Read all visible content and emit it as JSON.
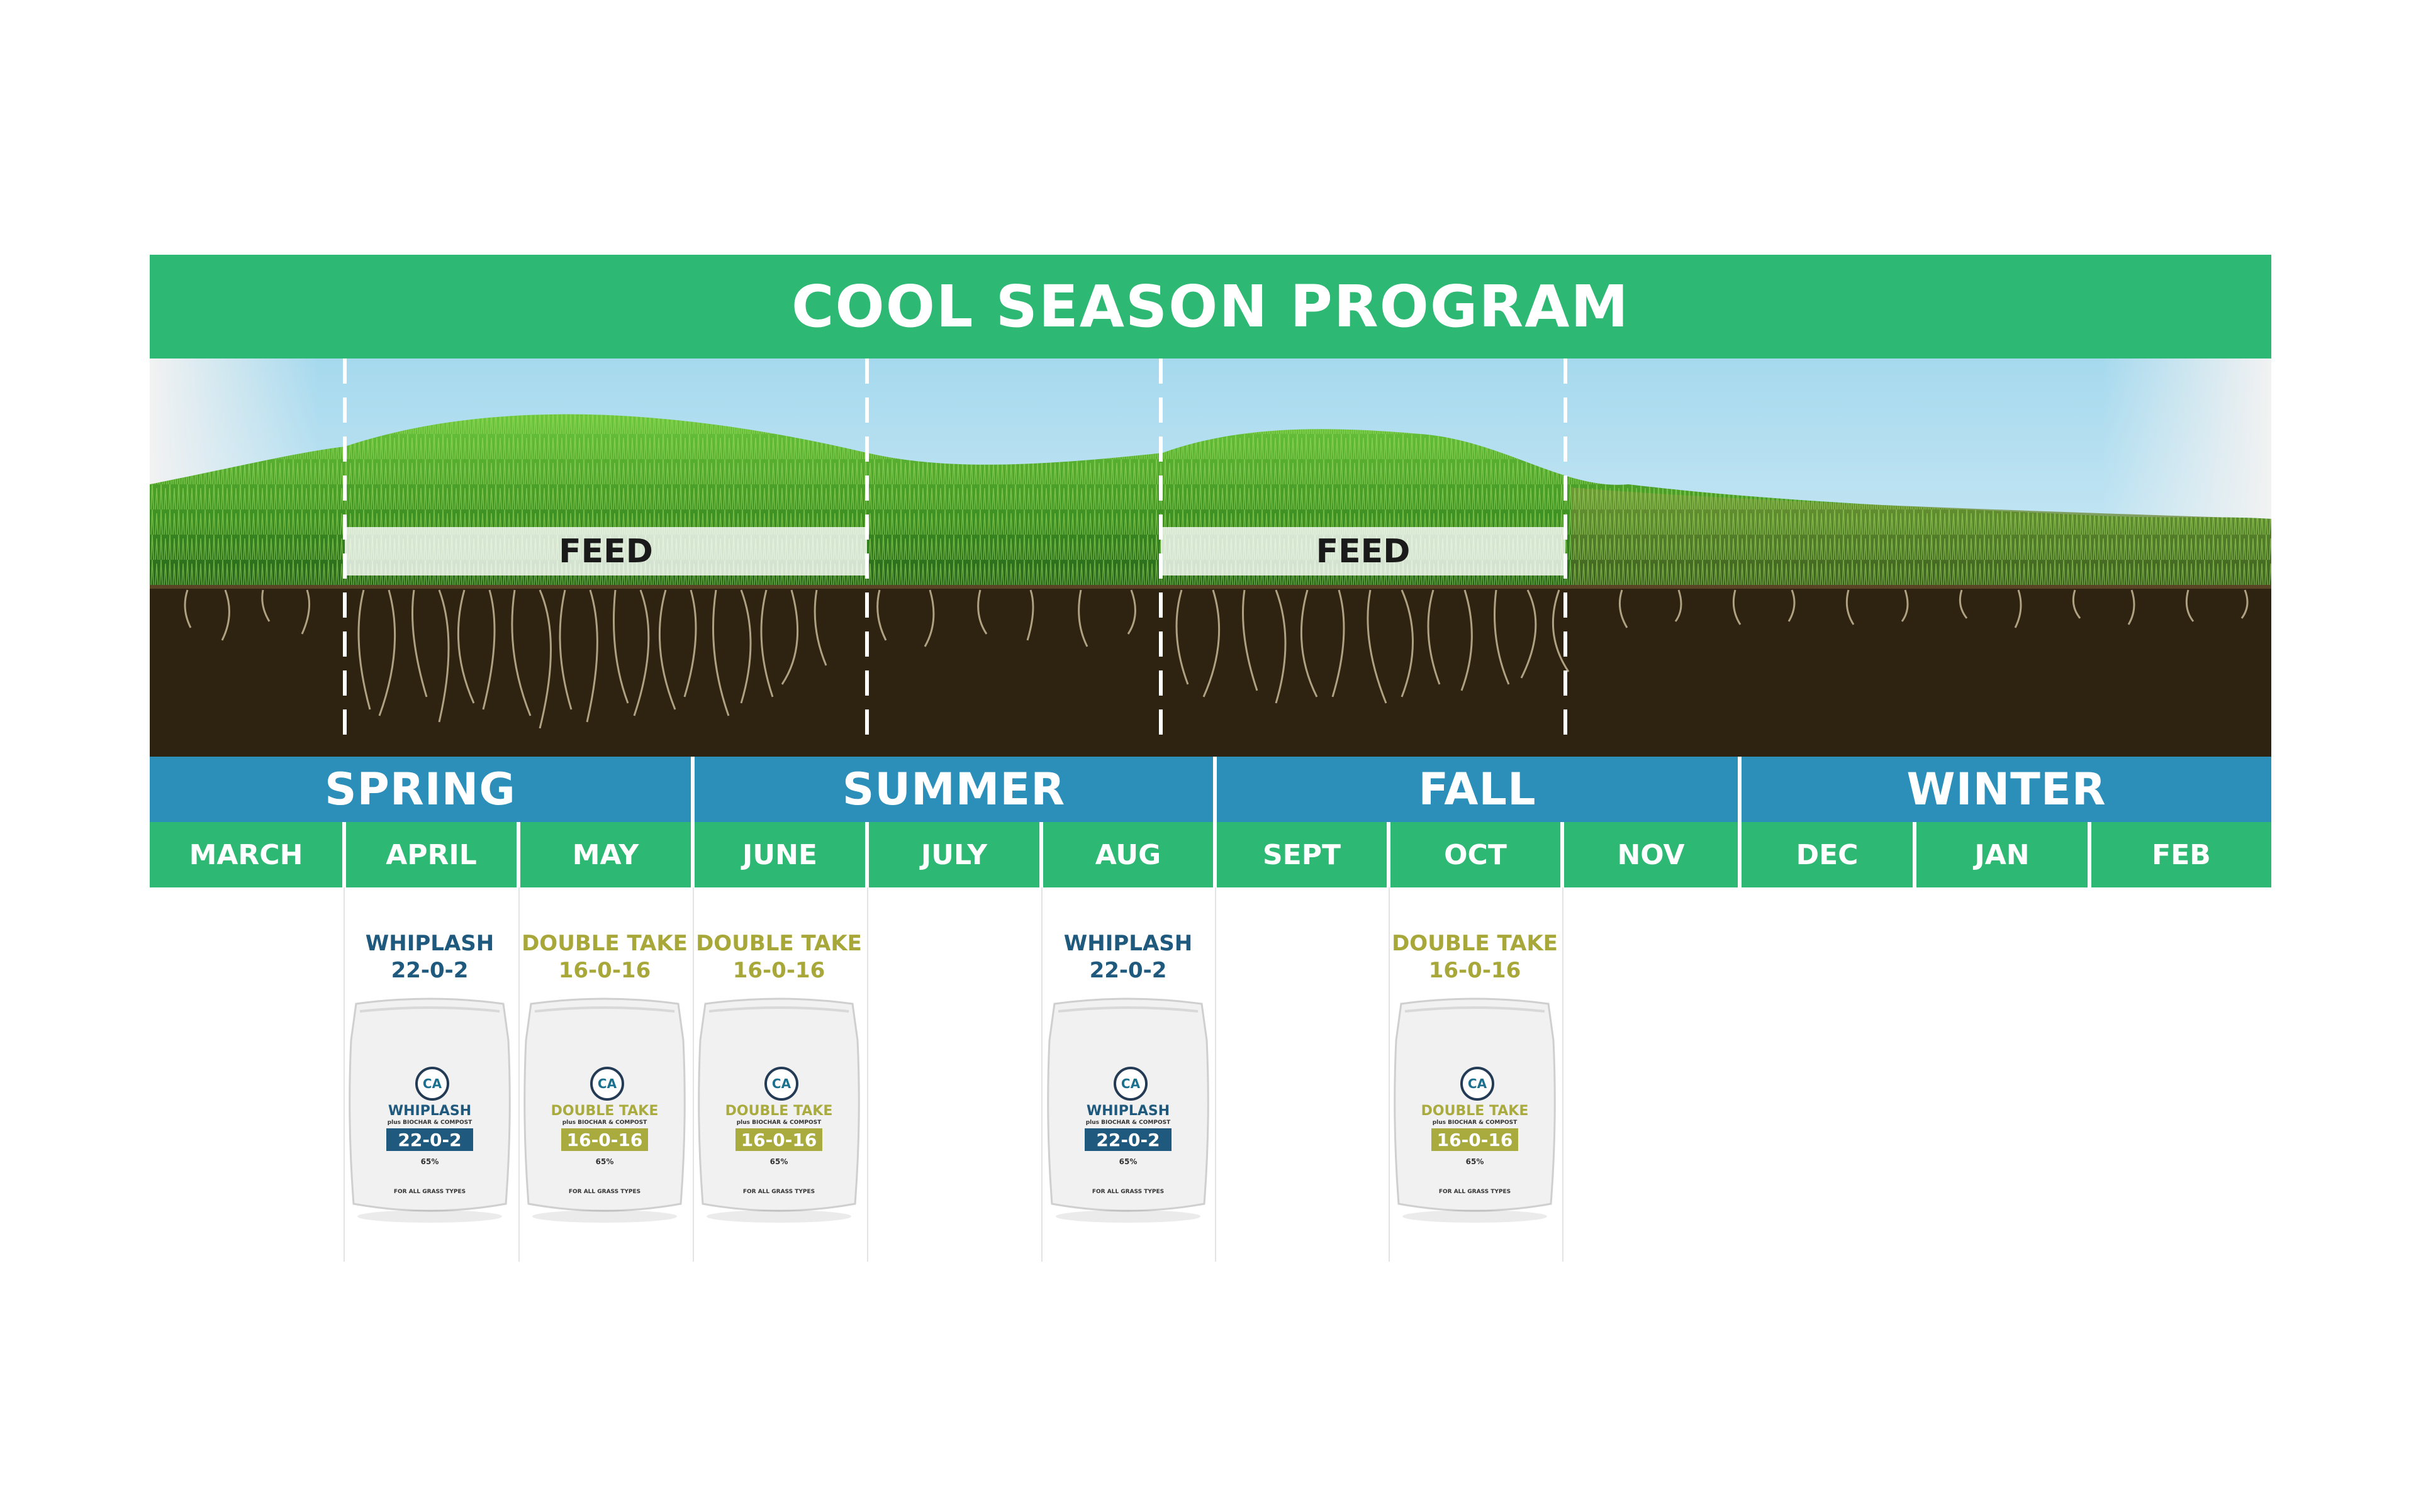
{
  "title": "COOL SEASON PROGRAM",
  "feed_labels": [
    "FEED",
    "FEED"
  ],
  "seasons": [
    {
      "label": "SPRING"
    },
    {
      "label": "SUMMER"
    },
    {
      "label": "FALL"
    },
    {
      "label": "WINTER"
    }
  ],
  "months": [
    "MARCH",
    "APRIL",
    "MAY",
    "JUNE",
    "JULY",
    "AUG",
    "SEPT",
    "OCT",
    "NOV",
    "DEC",
    "JAN",
    "FEB"
  ],
  "products": [
    {
      "month": "APRIL",
      "name": "WHIPLASH",
      "grade": "22-0-2",
      "color": "#1f5a7e",
      "bag_color": "#1f5a7e"
    },
    {
      "month": "MAY",
      "name": "DOUBLE TAKE",
      "grade": "16-0-16",
      "color": "#a8a83a",
      "bag_color": "#a9ab3f"
    },
    {
      "month": "JUNE",
      "name": "DOUBLE TAKE",
      "grade": "16-0-16",
      "color": "#a8a83a",
      "bag_color": "#a9ab3f"
    },
    {
      "month": "AUG",
      "name": "WHIPLASH",
      "grade": "22-0-2",
      "color": "#1f5a7e",
      "bag_color": "#1f5a7e"
    },
    {
      "month": "OCT",
      "name": "DOUBLE TAKE",
      "grade": "16-0-16",
      "color": "#a8a83a",
      "bag_color": "#a9ab3f"
    }
  ],
  "bag_text": {
    "logo": "CA",
    "subtitle": "plus BIOCHAR & COMPOST",
    "percent": "65%",
    "footer": "FOR ALL GRASS TYPES"
  },
  "colors": {
    "green": "#2db873",
    "blue": "#2b8fba",
    "soil": "#2e2210",
    "grass": "#3f9a2a"
  }
}
